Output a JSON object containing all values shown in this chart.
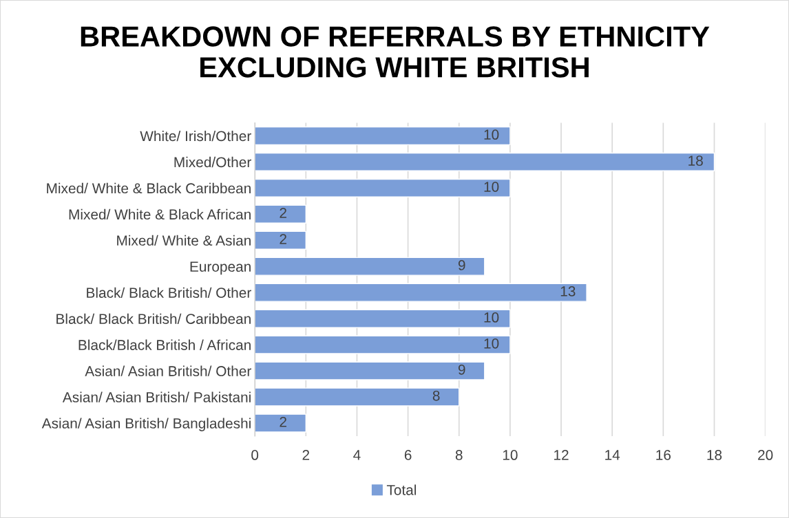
{
  "chart_data": {
    "type": "bar",
    "orientation": "horizontal",
    "title": "BREAKDOWN OF REFERRALS BY ETHNICITY EXCLUDING WHITE BRITISH",
    "categories": [
      "White/ Irish/Other",
      "Mixed/Other",
      "Mixed/ White & Black Caribbean",
      "Mixed/ White & Black African",
      "Mixed/ White & Asian",
      "European",
      "Black/ Black British/ Other",
      "Black/ Black British/ Caribbean",
      "Black/Black British / African",
      "Asian/ Asian British/ Other",
      "Asian/ Asian British/ Pakistani",
      "Asian/ Asian British/ Bangladeshi"
    ],
    "series": [
      {
        "name": "Total",
        "color": "#7b9ed8",
        "values": [
          10,
          18,
          10,
          2,
          2,
          9,
          13,
          10,
          10,
          9,
          8,
          2
        ]
      }
    ],
    "xlim": [
      0,
      20
    ],
    "xticks": [
      0,
      2,
      4,
      6,
      8,
      10,
      12,
      14,
      16,
      18,
      20
    ],
    "grid": "x",
    "legend": "bottom",
    "data_labels": true
  }
}
